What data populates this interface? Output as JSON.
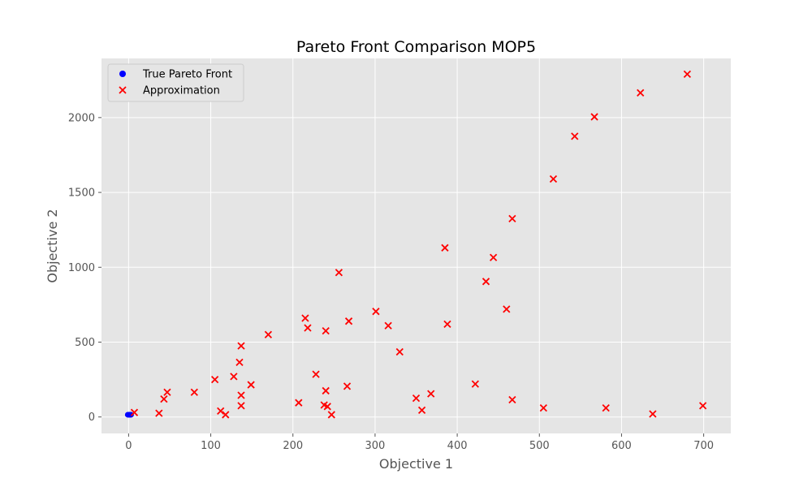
{
  "chart_data": {
    "type": "scatter",
    "title": "Pareto Front Comparison MOP5",
    "xlabel": "Objective 1",
    "ylabel": "Objective 2",
    "xlim": [
      -33,
      733
    ],
    "ylim": [
      -110,
      2395
    ],
    "xticks": [
      0,
      100,
      200,
      300,
      400,
      500,
      600,
      700
    ],
    "yticks": [
      0,
      500,
      1000,
      1500,
      2000
    ],
    "grid": true,
    "background": "#e5e5e5",
    "legend_position": "upper-left",
    "series": [
      {
        "name": "True Pareto Front",
        "marker": "circle",
        "color": "#0000ff",
        "points": [
          [
            -1,
            15
          ],
          [
            0,
            15
          ],
          [
            1,
            15
          ],
          [
            2,
            15
          ],
          [
            3,
            15
          ]
        ]
      },
      {
        "name": "Approximation",
        "marker": "x",
        "color": "#ff0000",
        "points": [
          [
            7,
            30
          ],
          [
            37,
            25
          ],
          [
            43,
            120
          ],
          [
            47,
            165
          ],
          [
            80,
            165
          ],
          [
            105,
            250
          ],
          [
            112,
            40
          ],
          [
            118,
            15
          ],
          [
            128,
            270
          ],
          [
            135,
            365
          ],
          [
            137,
            475
          ],
          [
            137,
            145
          ],
          [
            137,
            75
          ],
          [
            149,
            215
          ],
          [
            170,
            550
          ],
          [
            207,
            95
          ],
          [
            215,
            660
          ],
          [
            218,
            595
          ],
          [
            228,
            285
          ],
          [
            238,
            80
          ],
          [
            240,
            175
          ],
          [
            240,
            575
          ],
          [
            242,
            70
          ],
          [
            247,
            15
          ],
          [
            256,
            965
          ],
          [
            266,
            205
          ],
          [
            268,
            640
          ],
          [
            301,
            705
          ],
          [
            316,
            610
          ],
          [
            330,
            435
          ],
          [
            350,
            125
          ],
          [
            357,
            45
          ],
          [
            368,
            155
          ],
          [
            385,
            1130
          ],
          [
            388,
            620
          ],
          [
            422,
            220
          ],
          [
            435,
            905
          ],
          [
            444,
            1065
          ],
          [
            460,
            720
          ],
          [
            467,
            1325
          ],
          [
            467,
            115
          ],
          [
            505,
            60
          ],
          [
            517,
            1590
          ],
          [
            543,
            1875
          ],
          [
            567,
            2005
          ],
          [
            581,
            60
          ],
          [
            623,
            2165
          ],
          [
            638,
            20
          ],
          [
            680,
            2290
          ],
          [
            699,
            75
          ]
        ]
      }
    ]
  }
}
